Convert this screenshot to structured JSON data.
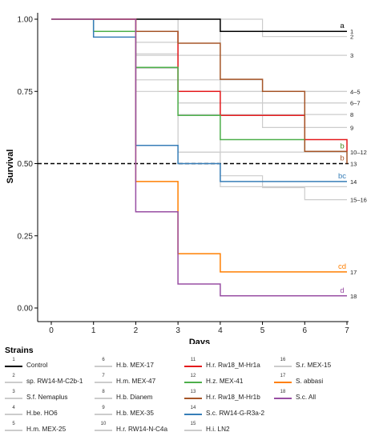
{
  "chart_data": {
    "type": "line",
    "step": true,
    "xlabel": "Days",
    "ylabel": "Survival",
    "xlim": [
      0,
      7
    ],
    "ylim": [
      0,
      1.04
    ],
    "x_ticks": [
      "0",
      "1",
      "2",
      "3",
      "4",
      "5",
      "6",
      "7"
    ],
    "y_ticks": [
      "0.00",
      "0.25",
      "0.50",
      "0.75",
      "1.00"
    ],
    "reference_line": {
      "y": 0.5,
      "style": "dashed"
    },
    "legend": {
      "title": "Strains",
      "placement": "bottom"
    },
    "series": [
      {
        "id": "1",
        "name": "Control",
        "color": "#000000",
        "highlight": true,
        "x": [
          0,
          4,
          7
        ],
        "y": [
          1.0,
          0.958,
          0.958
        ],
        "end_label": "1",
        "sig": "a"
      },
      {
        "id": "2",
        "name": "sp. RW14-M-C2b-1",
        "color": "#cccccc",
        "highlight": false,
        "x": [
          0,
          5,
          7
        ],
        "y": [
          1.0,
          0.94,
          0.94
        ],
        "end_label": "2",
        "sig": ""
      },
      {
        "id": "3",
        "name": "S.f. Nemaplus",
        "color": "#cccccc",
        "highlight": false,
        "x": [
          0,
          2,
          7
        ],
        "y": [
          1.0,
          0.875,
          0.875
        ],
        "end_label": "3",
        "sig": ""
      },
      {
        "id": "4",
        "name": "H.be. HO6",
        "color": "#cccccc",
        "highlight": false,
        "x": [
          0,
          2,
          3,
          7
        ],
        "y": [
          1.0,
          0.92,
          0.75,
          0.75
        ],
        "end_label": "4–5",
        "sig": ""
      },
      {
        "id": "5",
        "name": "H.m. MEX-25",
        "color": "#cccccc",
        "highlight": false,
        "x": [
          0,
          2,
          7
        ],
        "y": [
          1.0,
          0.75,
          0.75
        ],
        "end_label": "",
        "sig": ""
      },
      {
        "id": "6",
        "name": "H.b. MEX-17",
        "color": "#cccccc",
        "highlight": false,
        "x": [
          0,
          2,
          3,
          7
        ],
        "y": [
          1.0,
          0.88,
          0.71,
          0.71
        ],
        "end_label": "6–7",
        "sig": ""
      },
      {
        "id": "7",
        "name": "H.m. MEX-47",
        "color": "#cccccc",
        "highlight": false,
        "x": [
          0,
          3,
          7
        ],
        "y": [
          1.0,
          0.71,
          0.71
        ],
        "end_label": "",
        "sig": ""
      },
      {
        "id": "8",
        "name": "H.b. Dianem",
        "color": "#cccccc",
        "highlight": false,
        "x": [
          0,
          2,
          3,
          7
        ],
        "y": [
          1.0,
          0.83,
          0.67,
          0.67
        ],
        "end_label": "8",
        "sig": ""
      },
      {
        "id": "9",
        "name": "H.b. MEX-35",
        "color": "#cccccc",
        "highlight": false,
        "x": [
          0,
          2,
          5,
          7
        ],
        "y": [
          1.0,
          0.79,
          0.625,
          0.625
        ],
        "end_label": "9",
        "sig": ""
      },
      {
        "id": "10",
        "name": "H.r. RW14-N-C4a",
        "color": "#cccccc",
        "highlight": false,
        "x": [
          0,
          3,
          7
        ],
        "y": [
          1.0,
          0.54,
          0.54
        ],
        "end_label": "10–12",
        "sig": ""
      },
      {
        "id": "11",
        "name": "H.r. Rw18_M-Hr1a",
        "color": "#e41a1c",
        "highlight": true,
        "x": [
          0,
          2,
          3,
          4,
          6,
          7
        ],
        "y": [
          1.0,
          0.958,
          0.75,
          0.667,
          0.583,
          0.542
        ],
        "end_label": "",
        "sig": "b"
      },
      {
        "id": "12",
        "name": "H.z. MEX-41",
        "color": "#4daf4a",
        "highlight": true,
        "x": [
          0,
          1,
          2,
          3,
          4,
          6,
          7
        ],
        "y": [
          1.0,
          0.958,
          0.833,
          0.667,
          0.583,
          0.542,
          0.542
        ],
        "end_label": "",
        "sig": "b"
      },
      {
        "id": "13",
        "name": "H.r. Rw18_M-Hr1b",
        "color": "#a65628",
        "highlight": true,
        "x": [
          0,
          2,
          3,
          4,
          5,
          6,
          7
        ],
        "y": [
          1.0,
          0.958,
          0.917,
          0.792,
          0.75,
          0.542,
          0.5
        ],
        "end_label": "13",
        "sig": "b"
      },
      {
        "id": "14",
        "name": "S.c. RW14-G-R3a-2",
        "color": "#377eb8",
        "highlight": true,
        "x": [
          0,
          1,
          2,
          3,
          4,
          7
        ],
        "y": [
          1.0,
          0.938,
          0.563,
          0.5,
          0.438,
          0.438
        ],
        "end_label": "14",
        "sig": "bc"
      },
      {
        "id": "15",
        "name": "H.i. LN2",
        "color": "#cccccc",
        "highlight": false,
        "x": [
          0,
          4,
          5,
          6,
          7
        ],
        "y": [
          1.0,
          0.458,
          0.417,
          0.375,
          0.375
        ],
        "end_label": "15–16",
        "sig": ""
      },
      {
        "id": "16",
        "name": "S.r. MEX-15",
        "color": "#cccccc",
        "highlight": false,
        "x": [
          0,
          3,
          4,
          7
        ],
        "y": [
          1.0,
          0.54,
          0.42,
          0.42
        ],
        "end_label": "",
        "sig": ""
      },
      {
        "id": "17",
        "name": "S. abbasi",
        "color": "#ff7f00",
        "highlight": true,
        "x": [
          0,
          2,
          3,
          4,
          7
        ],
        "y": [
          1.0,
          0.438,
          0.188,
          0.125,
          0.125
        ],
        "end_label": "17",
        "sig": "cd"
      },
      {
        "id": "18",
        "name": "S.c. All",
        "color": "#984ea3",
        "highlight": true,
        "x": [
          0,
          2,
          3,
          4,
          7
        ],
        "y": [
          1.0,
          0.333,
          0.083,
          0.042,
          0.042
        ],
        "end_label": "18",
        "sig": "d"
      }
    ]
  }
}
